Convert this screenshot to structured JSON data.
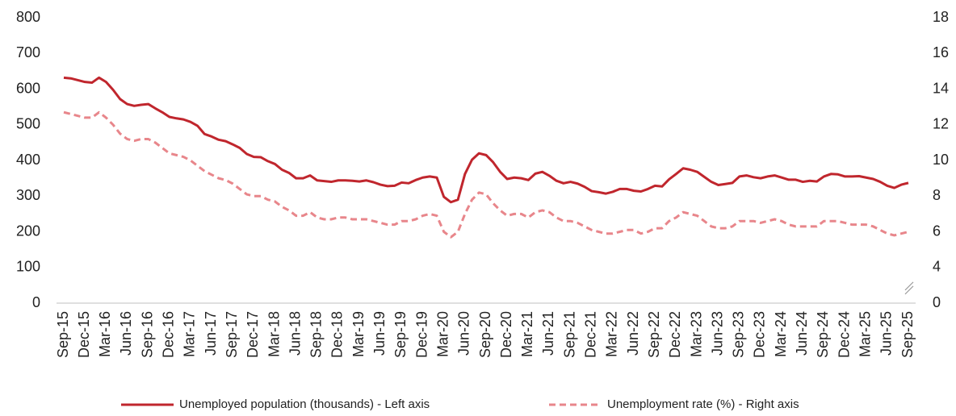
{
  "chart_data": {
    "type": "line",
    "categories": [
      "Sep-15",
      null,
      null,
      "Dec-15",
      null,
      null,
      "Mar-16",
      null,
      null,
      "Jun-16",
      null,
      null,
      "Sep-16",
      null,
      null,
      "Dec-16",
      null,
      null,
      "Mar-17",
      null,
      null,
      "Jun-17",
      null,
      null,
      "Sep-17",
      null,
      null,
      "Dec-17",
      null,
      null,
      "Mar-18",
      null,
      null,
      "Jun-18",
      null,
      null,
      "Sep-18",
      null,
      null,
      "Dec-18",
      null,
      null,
      "Mar-19",
      null,
      null,
      "Jun-19",
      null,
      null,
      "Sep-19",
      null,
      null,
      "Dec-19",
      null,
      null,
      "Mar-20",
      null,
      null,
      "Jun-20",
      null,
      null,
      "Sep-20",
      null,
      null,
      "Dec-20",
      null,
      null,
      "Mar-21",
      null,
      null,
      "Jun-21",
      null,
      null,
      "Sep-21",
      null,
      null,
      "Dec-21",
      null,
      null,
      "Mar-22",
      null,
      null,
      "Jun-22",
      null,
      null,
      "Sep-22",
      null,
      null,
      "Dec-22",
      null,
      null,
      "Mar-23",
      null,
      null,
      "Jun-23",
      null,
      null,
      "Sep-23",
      null,
      null,
      "Dec-23",
      null,
      null,
      "Mar-24",
      null,
      null,
      "Jun-24",
      null,
      null,
      "Sep-24",
      null,
      null,
      "Dec-24",
      null,
      null,
      "Mar-25",
      null,
      null,
      "Jun-25",
      null,
      null,
      "Sep-25"
    ],
    "series": [
      {
        "name": "Unemployed population (thousands) - Left axis",
        "color": "#c0262d",
        "dash": false,
        "values": [
          632,
          630,
          625,
          620,
          618,
          632,
          620,
          598,
          572,
          558,
          553,
          556,
          558,
          546,
          535,
          522,
          518,
          515,
          508,
          497,
          474,
          467,
          458,
          454,
          445,
          435,
          418,
          410,
          409,
          398,
          390,
          374,
          365,
          350,
          350,
          358,
          344,
          342,
          340,
          344,
          344,
          343,
          341,
          344,
          339,
          332,
          328,
          329,
          338,
          336,
          345,
          352,
          355,
          352,
          298,
          283,
          290,
          362,
          402,
          420,
          415,
          395,
          368,
          348,
          352,
          350,
          345,
          363,
          368,
          357,
          343,
          336,
          340,
          335,
          326,
          314,
          311,
          307,
          312,
          320,
          320,
          315,
          313,
          320,
          329,
          327,
          347,
          362,
          378,
          374,
          368,
          354,
          340,
          331,
          334,
          337,
          355,
          358,
          353,
          350,
          355,
          358,
          352,
          346,
          346,
          340,
          343,
          341,
          355,
          362,
          361,
          355,
          355,
          356,
          352,
          348,
          340,
          329,
          323,
          332,
          337
        ]
      },
      {
        "name": "Unemployment rate (%) - Right axis",
        "color": "#e8868b",
        "dash": true,
        "axis": "y2",
        "values": [
          12.7,
          12.6,
          12.5,
          12.4,
          12.4,
          12.7,
          12.4,
          12.0,
          11.5,
          11.2,
          11.1,
          11.2,
          11.2,
          11.0,
          10.7,
          10.4,
          10.3,
          10.2,
          10.0,
          9.7,
          9.4,
          9.2,
          9.0,
          8.9,
          8.7,
          8.4,
          8.1,
          8.0,
          8.0,
          7.8,
          7.7,
          7.4,
          7.2,
          6.9,
          6.9,
          7.1,
          6.8,
          6.7,
          6.7,
          6.8,
          6.8,
          6.7,
          6.7,
          6.7,
          6.6,
          6.5,
          6.4,
          6.4,
          6.6,
          6.6,
          6.7,
          6.9,
          7.0,
          6.9,
          6.0,
          5.7,
          6.0,
          7.0,
          7.8,
          8.2,
          8.1,
          7.6,
          7.2,
          6.9,
          7.0,
          7.0,
          6.8,
          7.1,
          7.2,
          7.1,
          6.8,
          6.6,
          6.6,
          6.5,
          6.3,
          6.1,
          6.0,
          5.9,
          5.9,
          6.0,
          6.1,
          6.1,
          5.9,
          6.0,
          6.2,
          6.2,
          6.6,
          6.8,
          7.1,
          7.0,
          6.9,
          6.6,
          6.3,
          6.2,
          6.2,
          6.3,
          6.6,
          6.6,
          6.6,
          6.5,
          6.6,
          6.7,
          6.6,
          6.4,
          6.3,
          6.3,
          6.3,
          6.3,
          6.6,
          6.6,
          6.6,
          6.5,
          6.4,
          6.4,
          6.4,
          6.3,
          6.1,
          5.9,
          5.8,
          5.9,
          6.0
        ]
      }
    ],
    "ylim": [
      0,
      800
    ],
    "yticks": [
      0,
      100,
      200,
      300,
      400,
      500,
      600,
      700,
      800
    ],
    "y2lim": [
      0,
      18
    ],
    "y2ticks": [
      0,
      4,
      6,
      8,
      10,
      12,
      14,
      16,
      18
    ],
    "y2_axis_break": true,
    "grid": false,
    "legend": "bottom"
  }
}
